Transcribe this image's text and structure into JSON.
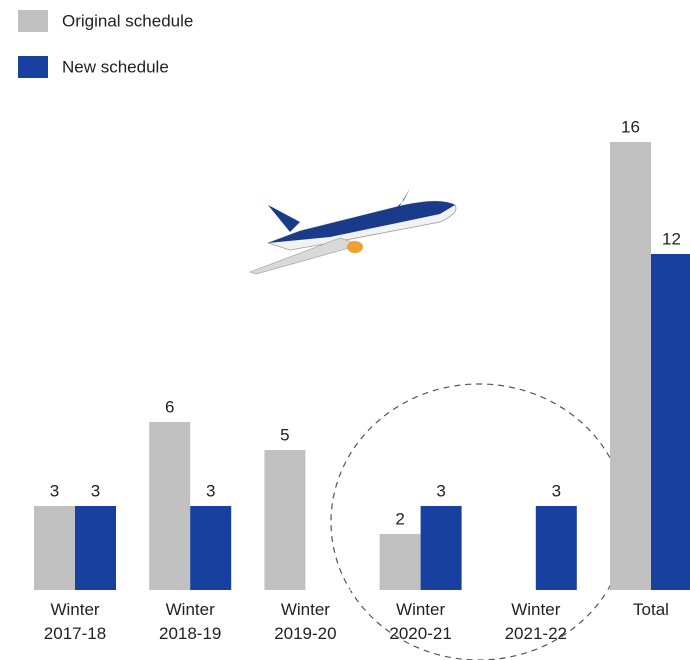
{
  "chart_data": {
    "type": "bar",
    "categories": [
      "Winter 2017-18",
      "Winter 2018-19",
      "Winter 2019-20",
      "Winter 2020-21",
      "Winter 2021-22",
      "Total"
    ],
    "series": [
      {
        "name": "Original schedule",
        "color": "#c0c0c0",
        "values": [
          3,
          6,
          5,
          2,
          null,
          16
        ]
      },
      {
        "name": "New schedule",
        "color": "#1740a0",
        "values": [
          3,
          3,
          null,
          3,
          3,
          12
        ]
      }
    ]
  }
}
